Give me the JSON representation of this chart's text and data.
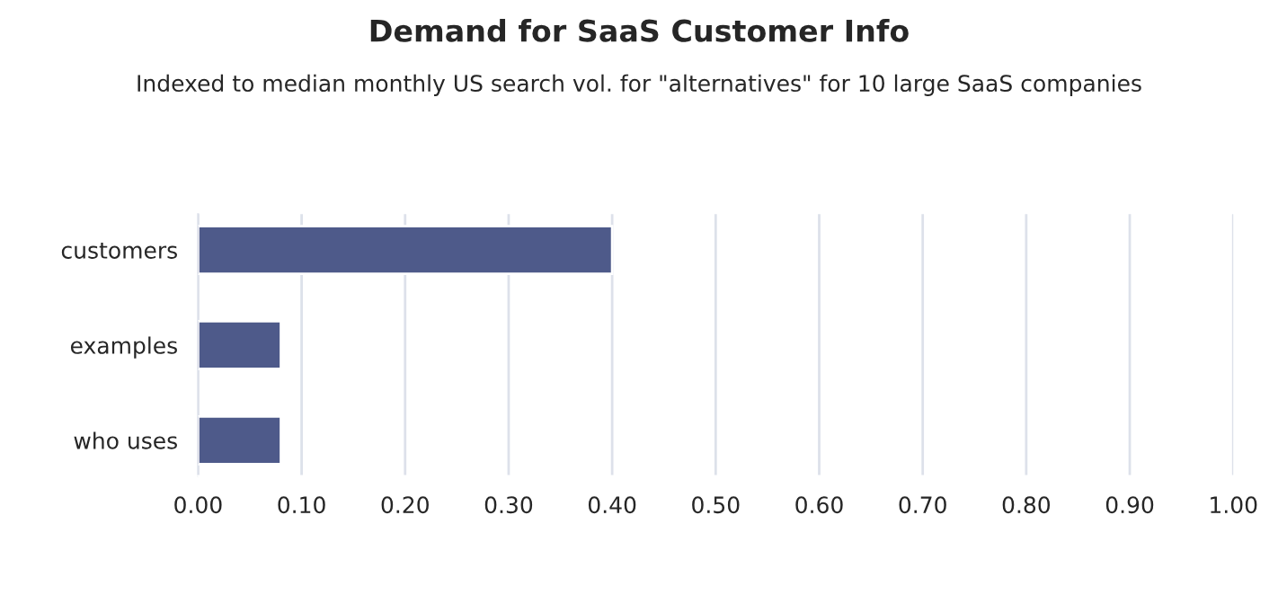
{
  "chart_data": {
    "type": "bar",
    "orientation": "horizontal",
    "title": "Demand for SaaS Customer Info",
    "subtitle": "Indexed to median monthly US search vol. for \"alternatives\" for 10 large SaaS companies",
    "categories": [
      "customers",
      "examples",
      "who uses"
    ],
    "values": [
      0.4,
      0.08,
      0.08
    ],
    "color": "#4e5a8a",
    "xlim": [
      0,
      1.0
    ],
    "xticks": [
      {
        "value": 0,
        "label": "0.00"
      },
      {
        "value": 0.1,
        "label": "0.10"
      },
      {
        "value": 0.2,
        "label": "0.20"
      },
      {
        "value": 0.3,
        "label": "0.30"
      },
      {
        "value": 0.4,
        "label": "0.40"
      },
      {
        "value": 0.5,
        "label": "0.50"
      },
      {
        "value": 0.6,
        "label": "0.60"
      },
      {
        "value": 0.7,
        "label": "0.70"
      },
      {
        "value": 0.8,
        "label": "0.80"
      },
      {
        "value": 0.9,
        "label": "0.90"
      },
      {
        "value": 1.0,
        "label": "1.00"
      }
    ],
    "grid": "x",
    "legend": false
  }
}
